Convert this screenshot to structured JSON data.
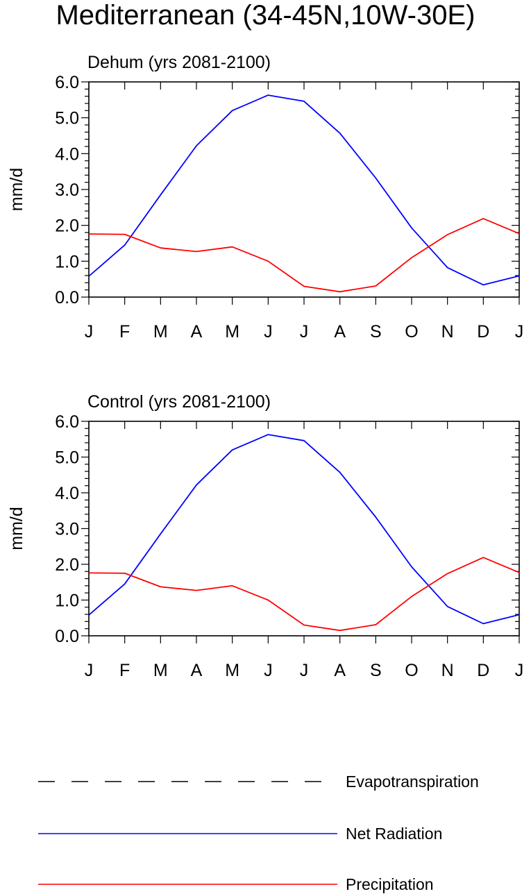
{
  "title": "Mediterranean (34-45N,10W-30E)",
  "colors": {
    "net_radiation": "#0000ff",
    "precipitation": "#ff0000",
    "evapotranspiration": "#000000"
  },
  "chart_data": [
    {
      "type": "line",
      "title": "Dehum (yrs 2081-2100)",
      "ylabel": "mm/d",
      "ylim": [
        0,
        6
      ],
      "yticks": [
        "0.0",
        "1.0",
        "2.0",
        "3.0",
        "4.0",
        "5.0",
        "6.0"
      ],
      "categories": [
        "J",
        "F",
        "M",
        "A",
        "M",
        "J",
        "J",
        "A",
        "S",
        "O",
        "N",
        "D",
        "J"
      ],
      "series": [
        {
          "name": "Net Radiation",
          "values": [
            0.58,
            1.45,
            2.85,
            4.22,
            5.2,
            5.63,
            5.46,
            4.57,
            3.32,
            1.93,
            0.82,
            0.34,
            0.59
          ]
        },
        {
          "name": "Precipitation",
          "values": [
            1.76,
            1.75,
            1.37,
            1.27,
            1.4,
            1.0,
            0.3,
            0.15,
            0.31,
            1.1,
            1.74,
            2.19,
            1.77
          ]
        }
      ]
    },
    {
      "type": "line",
      "title": "Control (yrs 2081-2100)",
      "ylabel": "mm/d",
      "ylim": [
        0,
        6
      ],
      "yticks": [
        "0.0",
        "1.0",
        "2.0",
        "3.0",
        "4.0",
        "5.0",
        "6.0"
      ],
      "categories": [
        "J",
        "F",
        "M",
        "A",
        "M",
        "J",
        "J",
        "A",
        "S",
        "O",
        "N",
        "D",
        "J"
      ],
      "series": [
        {
          "name": "Net Radiation",
          "values": [
            0.58,
            1.45,
            2.85,
            4.22,
            5.2,
            5.63,
            5.46,
            4.57,
            3.32,
            1.93,
            0.82,
            0.34,
            0.59
          ]
        },
        {
          "name": "Precipitation",
          "values": [
            1.76,
            1.75,
            1.37,
            1.27,
            1.4,
            1.0,
            0.3,
            0.15,
            0.31,
            1.1,
            1.74,
            2.19,
            1.77
          ]
        }
      ]
    }
  ],
  "legend": [
    {
      "label": "Evapotranspiration",
      "style": "dashed",
      "color": "#000000"
    },
    {
      "label": "Net Radiation",
      "style": "solid",
      "color": "#0000ff"
    },
    {
      "label": "Precipitation",
      "style": "solid",
      "color": "#ff0000"
    }
  ]
}
